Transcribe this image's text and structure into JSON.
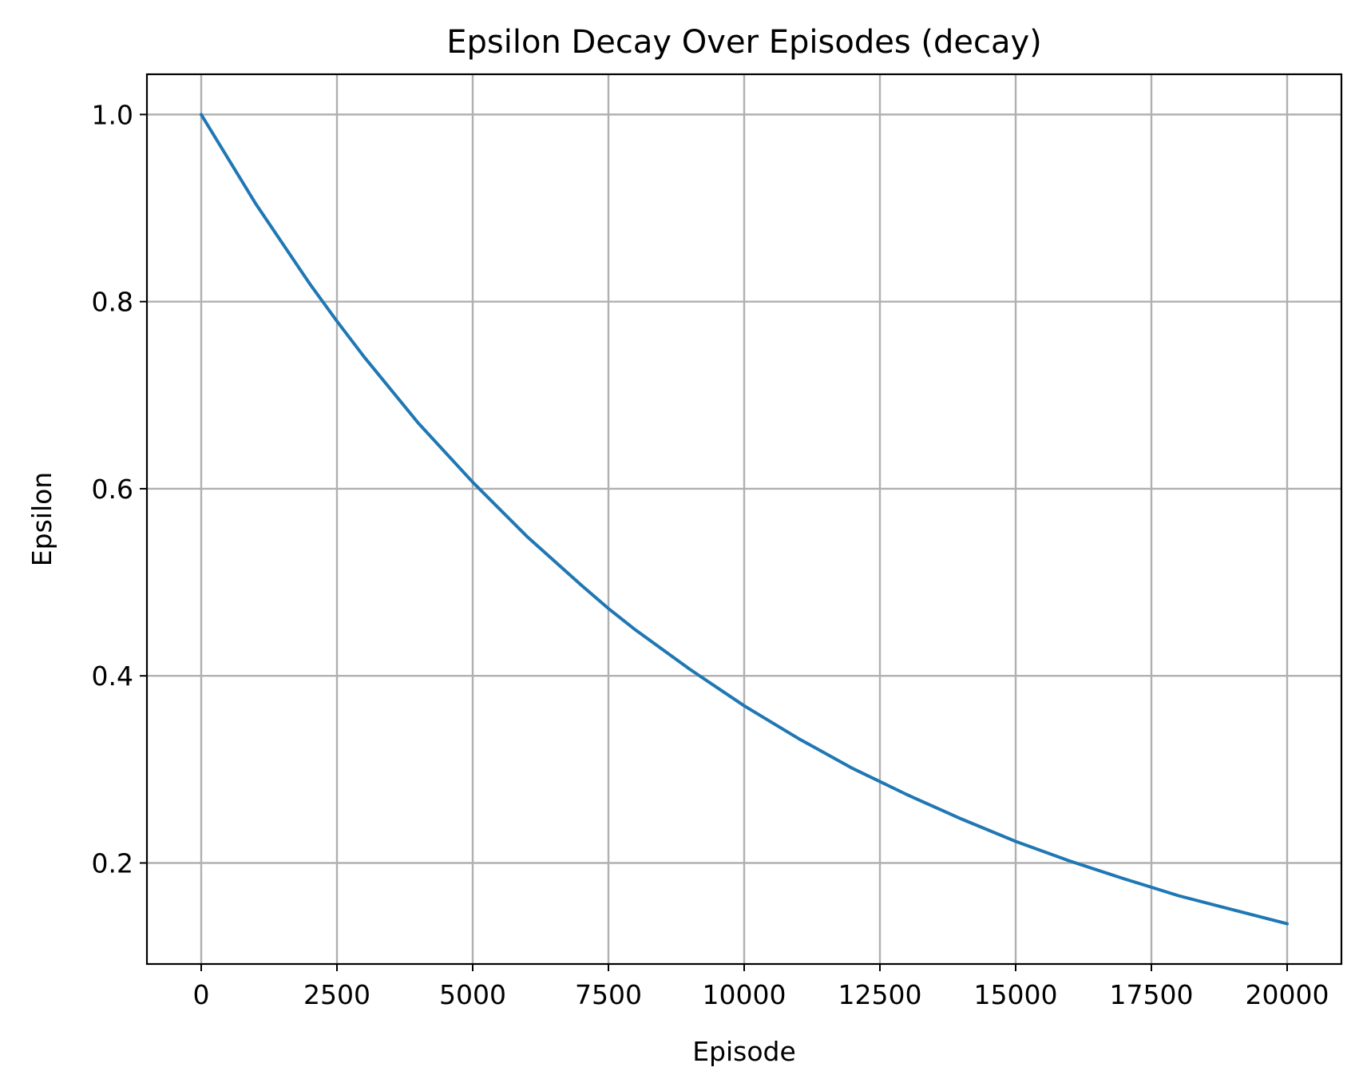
{
  "chart_data": {
    "type": "line",
    "title": "Epsilon Decay Over Episodes (decay)",
    "xlabel": "Episode",
    "ylabel": "Epsilon",
    "xlim": [
      -1000,
      21000
    ],
    "ylim": [
      0.092,
      1.043
    ],
    "xticks": [
      0,
      2500,
      5000,
      7500,
      10000,
      12500,
      15000,
      17500,
      20000
    ],
    "yticks": [
      0.2,
      0.4,
      0.6,
      0.8,
      1.0
    ],
    "xtick_labels": [
      "0",
      "2500",
      "5000",
      "7500",
      "10000",
      "12500",
      "15000",
      "17500",
      "20000"
    ],
    "ytick_labels": [
      "0.2",
      "0.4",
      "0.6",
      "0.8",
      "1.0"
    ],
    "grid": true,
    "series": [
      {
        "color": "#1f77b4",
        "x": [
          0,
          1000,
          2000,
          2500,
          3000,
          4000,
          5000,
          6000,
          7000,
          7500,
          8000,
          9000,
          10000,
          11000,
          12000,
          12500,
          13000,
          14000,
          15000,
          16000,
          17000,
          17500,
          18000,
          19000,
          20000
        ],
        "y": [
          1.0,
          0.905,
          0.819,
          0.779,
          0.741,
          0.67,
          0.607,
          0.549,
          0.497,
          0.472,
          0.449,
          0.407,
          0.368,
          0.333,
          0.301,
          0.287,
          0.273,
          0.247,
          0.223,
          0.202,
          0.183,
          0.174,
          0.165,
          0.15,
          0.135
        ]
      }
    ]
  }
}
